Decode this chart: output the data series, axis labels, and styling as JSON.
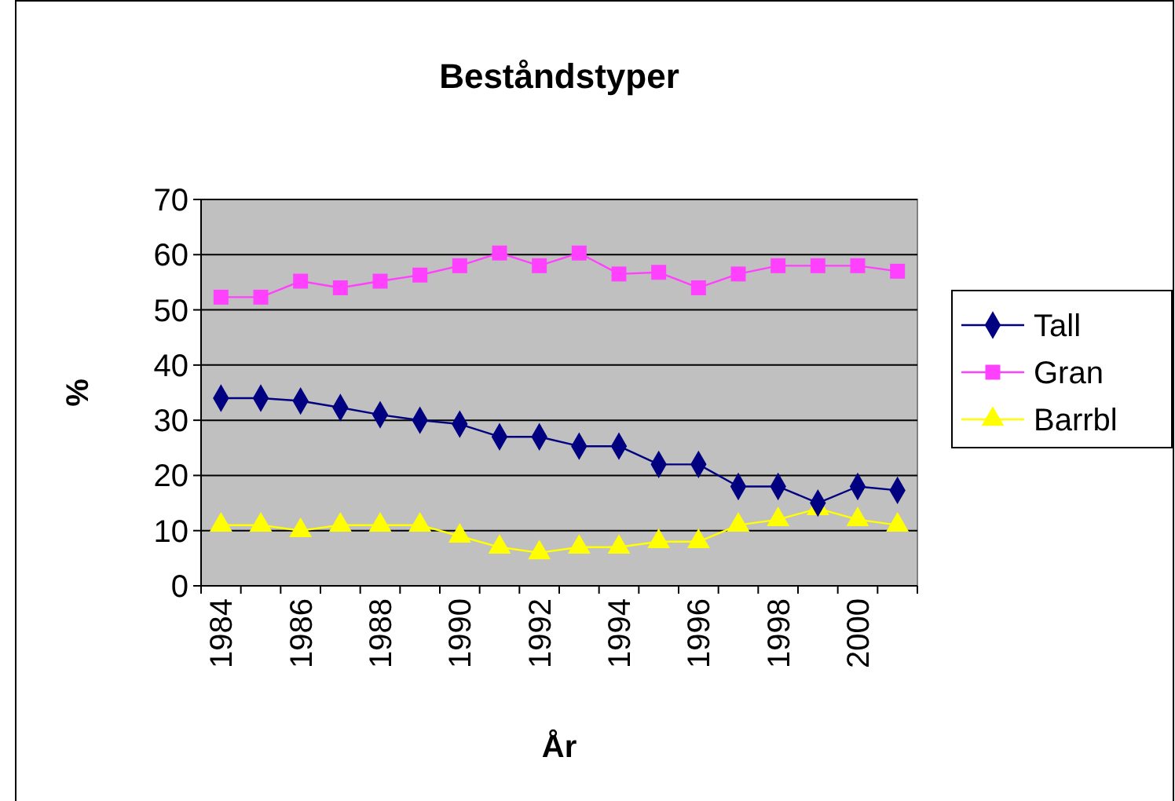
{
  "chart_data": {
    "type": "line",
    "title": "Beståndstyper",
    "xlabel": "År",
    "ylabel": "%",
    "categories": [
      "1984",
      null,
      "1986",
      null,
      "1988",
      null,
      "1990",
      null,
      "1992",
      null,
      "1994",
      null,
      "1996",
      null,
      "1998",
      null,
      "2000",
      null
    ],
    "series": [
      {
        "name": "Tall",
        "color": "#000080",
        "marker": "diamond",
        "values": [
          34,
          34,
          33.5,
          32.3,
          31,
          30,
          29.3,
          27,
          27,
          25.3,
          25.3,
          22,
          22,
          18,
          18,
          15,
          18,
          17.3
        ]
      },
      {
        "name": "Gran",
        "color": "#ff40ff",
        "marker": "square",
        "values": [
          52.3,
          52.3,
          55.2,
          54,
          55.2,
          56.3,
          58,
          60.3,
          58,
          60.3,
          56.5,
          56.8,
          54,
          56.5,
          58,
          58,
          58,
          57
        ]
      },
      {
        "name": "Barrbl",
        "color": "#ffff00",
        "marker": "triangle",
        "values": [
          11,
          11,
          10,
          11,
          11,
          11,
          9,
          7,
          6,
          7,
          7,
          8,
          8,
          11,
          12,
          14,
          12,
          11
        ]
      }
    ],
    "ylim": [
      0,
      70
    ],
    "yticks": [
      0,
      10,
      20,
      30,
      40,
      50,
      60,
      70
    ],
    "grid": "y",
    "legend": "right"
  }
}
